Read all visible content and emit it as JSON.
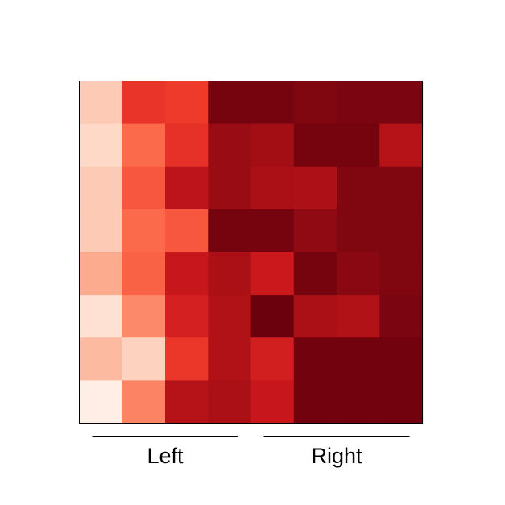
{
  "chart_data": {
    "type": "heatmap",
    "title": "",
    "xlabel": "",
    "ylabel": "",
    "rows": 8,
    "cols": 8,
    "colormap": "Reds",
    "groups": [
      {
        "label": "Left",
        "columns": [
          0,
          3
        ]
      },
      {
        "label": "Right",
        "columns": [
          4,
          7
        ]
      }
    ],
    "values": [
      [
        0.2,
        0.65,
        0.63,
        0.97,
        0.97,
        0.95,
        0.96,
        0.96
      ],
      [
        0.15,
        0.5,
        0.66,
        0.9,
        0.88,
        0.97,
        0.97,
        0.82
      ],
      [
        0.2,
        0.55,
        0.8,
        0.9,
        0.86,
        0.85,
        0.95,
        0.95
      ],
      [
        0.2,
        0.5,
        0.55,
        0.97,
        0.97,
        0.92,
        0.95,
        0.95
      ],
      [
        0.3,
        0.52,
        0.76,
        0.86,
        0.75,
        0.97,
        0.93,
        0.95
      ],
      [
        0.12,
        0.4,
        0.72,
        0.84,
        0.99,
        0.86,
        0.84,
        0.96
      ],
      [
        0.25,
        0.17,
        0.64,
        0.84,
        0.73,
        0.98,
        0.98,
        0.98
      ],
      [
        0.04,
        0.42,
        0.82,
        0.86,
        0.76,
        0.98,
        0.98,
        0.98
      ]
    ]
  }
}
